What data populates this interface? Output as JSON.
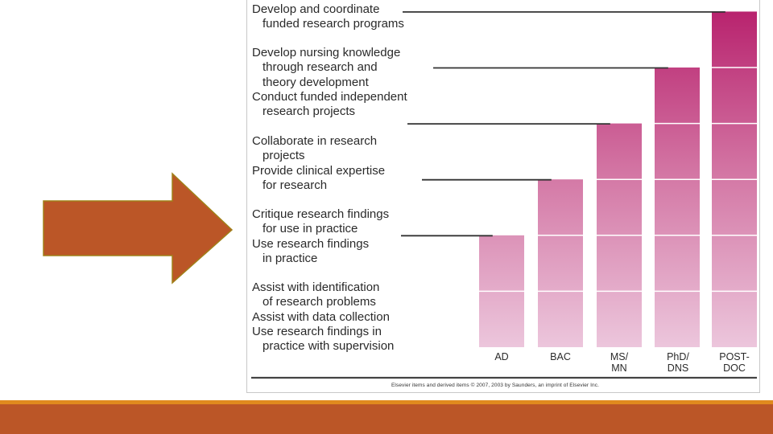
{
  "chart_data": {
    "type": "bar",
    "categories": [
      "AD",
      "BAC",
      "MS/\nMN",
      "PhD/\nDNS",
      "POST-\nDOC"
    ],
    "values": [
      2,
      3,
      4,
      5,
      6
    ],
    "annotations": [
      {
        "lines": [
          "Develop and coordinate",
          "funded research programs"
        ],
        "indent": [
          false,
          true
        ],
        "category": "POST-\nDOC"
      },
      {
        "lines": [
          "Develop nursing knowledge",
          "through research and",
          "theory development",
          "Conduct funded independent",
          "research projects"
        ],
        "indent": [
          false,
          true,
          true,
          false,
          true
        ],
        "category": "PhD/\nDNS"
      },
      {
        "lines": [
          "Collaborate in research",
          "projects",
          "Provide clinical expertise",
          "for research"
        ],
        "indent": [
          false,
          true,
          false,
          true
        ],
        "category": "MS/\nMN"
      },
      {
        "lines": [
          "Critique research findings",
          "for use in practice",
          "Use research findings",
          "in practice"
        ],
        "indent": [
          false,
          true,
          false,
          true
        ],
        "category": "BAC"
      },
      {
        "lines": [
          "Assist with identification",
          "of research problems",
          "Assist with data collection",
          "Use research findings in",
          "practice with supervision"
        ],
        "indent": [
          false,
          true,
          false,
          false,
          true
        ],
        "category": "AD"
      }
    ],
    "credit": "Elsevier items and derived items © 2007, 2003 by Saunders, an imprint of Elsevier Inc."
  },
  "colors": {
    "bar_top": "#b8236e",
    "bar_bottom": "#ecc6dc",
    "arrow_fill": "#bb5627",
    "arrow_stroke": "#a08018",
    "accent_bar": "#bb5627",
    "accent_stripe": "#e08a1e"
  }
}
